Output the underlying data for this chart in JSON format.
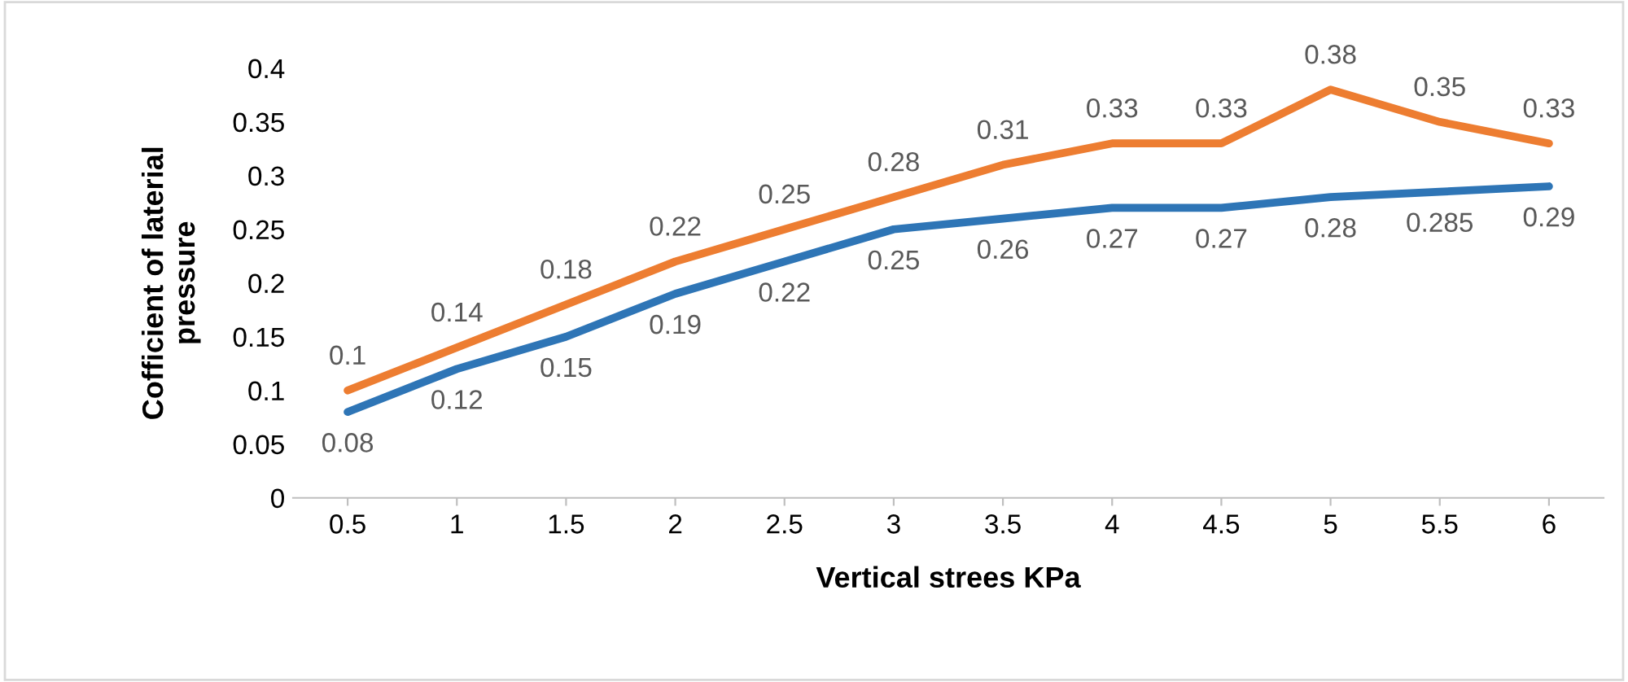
{
  "chart_data": {
    "type": "line",
    "xlabel": "Vertical strees KPa",
    "ylabel": "Cofficient of laterial pressure",
    "categories": [
      "0.5",
      "1",
      "1.5",
      "2",
      "2.5",
      "3",
      "3.5",
      "4",
      "4.5",
      "5",
      "5.5",
      "6"
    ],
    "series": [
      {
        "color": "#2e75b6",
        "values": [
          0.08,
          0.12,
          0.15,
          0.19,
          0.22,
          0.25,
          0.26,
          0.27,
          0.27,
          0.28,
          0.285,
          0.29
        ]
      },
      {
        "color": "#ed7d31",
        "values": [
          0.1,
          0.14,
          0.18,
          0.22,
          0.25,
          0.28,
          0.31,
          0.33,
          0.33,
          0.38,
          0.35,
          0.33
        ]
      }
    ],
    "ylim": [
      0,
      0.4
    ],
    "yticks": [
      0,
      0.05,
      0.1,
      0.15,
      0.2,
      0.25,
      0.3,
      0.35,
      0.4
    ],
    "data_labels": true,
    "grid": false,
    "legend": false,
    "marker": "none",
    "line_style": "solid"
  }
}
